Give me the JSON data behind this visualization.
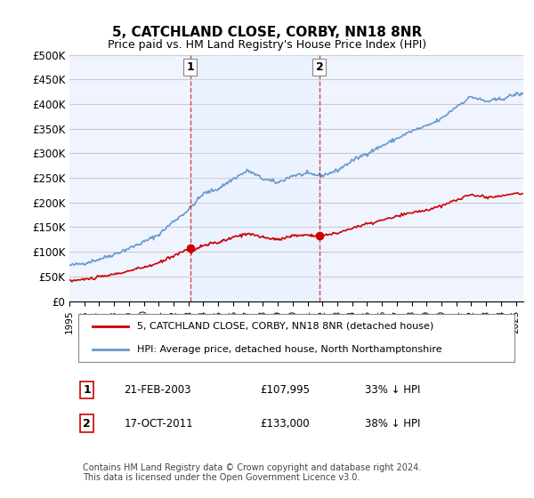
{
  "title": "5, CATCHLAND CLOSE, CORBY, NN18 8NR",
  "subtitle": "Price paid vs. HM Land Registry's House Price Index (HPI)",
  "ylabel_ticks": [
    "£0",
    "£50K",
    "£100K",
    "£150K",
    "£200K",
    "£250K",
    "£300K",
    "£350K",
    "£400K",
    "£450K",
    "£500K"
  ],
  "ytick_values": [
    0,
    50000,
    100000,
    150000,
    200000,
    250000,
    300000,
    350000,
    400000,
    450000,
    500000
  ],
  "ylim": [
    0,
    500000
  ],
  "xlim_start": 1995.0,
  "xlim_end": 2025.5,
  "purchase1": {
    "date_num": 2003.13,
    "price": 107995,
    "label": "1"
  },
  "purchase2": {
    "date_num": 2011.8,
    "price": 133000,
    "label": "2"
  },
  "legend_line1": "5, CATCHLAND CLOSE, CORBY, NN18 8NR (detached house)",
  "legend_line2": "HPI: Average price, detached house, North Northamptonshire",
  "table_row1": "1     21-FEB-2003          £107,995        33% ↓ HPI",
  "table_row2": "2     17-OCT-2011          £133,000        38% ↓ HPI",
  "footer": "Contains HM Land Registry data © Crown copyright and database right 2024.\nThis data is licensed under the Open Government Licence v3.0.",
  "red_color": "#cc0000",
  "blue_color": "#6699cc",
  "shade_color": "#ddeeff",
  "grid_color": "#cccccc",
  "background_color": "#f0f4ff"
}
